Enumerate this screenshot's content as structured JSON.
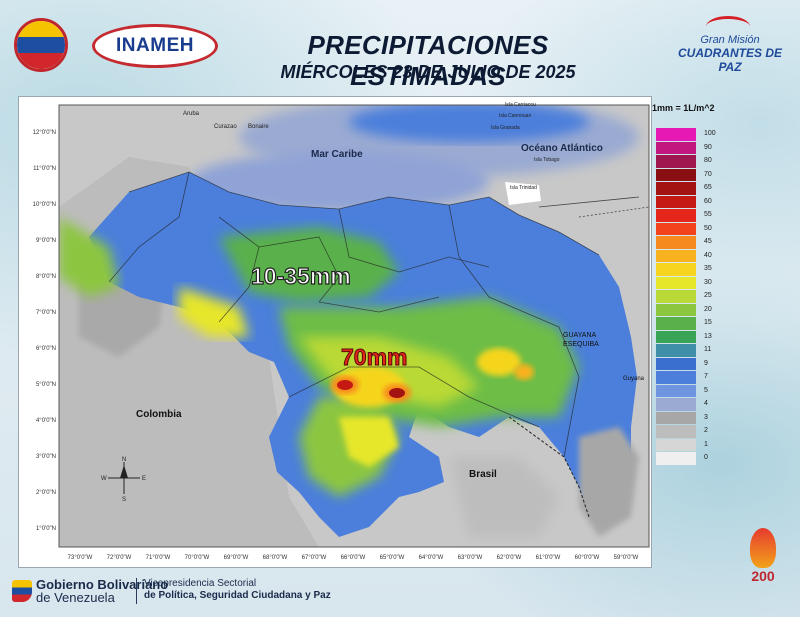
{
  "header": {
    "title": "PRECIPITACIONES ESTIMADAS",
    "subtitle": "MIÉRCOLES 23 DE JULIO DE 2025",
    "logo_inameh": "INAMEH",
    "mision_line1": "Gran Misión",
    "mision_line2": "CUADRANTES DE PAZ"
  },
  "map": {
    "labels": {
      "mar_caribe": "Mar Caribe",
      "oceano_atlantico": "Océano Atlántico",
      "colombia": "Colombia",
      "brasil": "Brasil",
      "guayana_line1": "GUAYANA",
      "guayana_line2": "ESEQUIBA",
      "guyana": "Guyana",
      "aruba": "Aruba",
      "curazao": "Curazao",
      "bonaire": "Bonaire",
      "trinidad": "Isla Trinidad",
      "tobago": "Isla Tobago",
      "granada": "Isla Granada",
      "carriacou": "Isla Carriacou",
      "cannouan": "Isla Cannouan",
      "compass_n": "N",
      "compass_s": "S",
      "compass_e": "E",
      "compass_w": "W"
    },
    "annotations": {
      "range": "10-35mm",
      "max": "70mm"
    },
    "lat_ticks": [
      "12°0'0\"N",
      "11°0'0\"N",
      "10°0'0\"N",
      "9°0'0\"N",
      "8°0'0\"N",
      "7°0'0\"N",
      "6°0'0\"N",
      "5°0'0\"N",
      "4°0'0\"N",
      "3°0'0\"N",
      "2°0'0\"N",
      "1°0'0\"N"
    ],
    "lon_ticks": [
      "73°0'0\"W",
      "72°0'0\"W",
      "71°0'0\"W",
      "70°0'0\"W",
      "69°0'0\"W",
      "68°0'0\"W",
      "67°0'0\"W",
      "66°0'0\"W",
      "65°0'0\"W",
      "64°0'0\"W",
      "63°0'0\"W",
      "62°0'0\"W",
      "61°0'0\"W",
      "60°0'0\"W",
      "59°0'0\"W"
    ]
  },
  "legend": {
    "unit": "1mm = 1L/m^2",
    "items": [
      {
        "label": "100",
        "color": "#e619b4"
      },
      {
        "label": "90",
        "color": "#c2177f"
      },
      {
        "label": "80",
        "color": "#a0164e"
      },
      {
        "label": "70",
        "color": "#8a0f12"
      },
      {
        "label": "65",
        "color": "#a31312"
      },
      {
        "label": "60",
        "color": "#c51a14"
      },
      {
        "label": "55",
        "color": "#e4271a"
      },
      {
        "label": "50",
        "color": "#f2431c"
      },
      {
        "label": "45",
        "color": "#f78a1e"
      },
      {
        "label": "40",
        "color": "#f9b21f"
      },
      {
        "label": "35",
        "color": "#f5d51f"
      },
      {
        "label": "30",
        "color": "#e6e62a"
      },
      {
        "label": "25",
        "color": "#b9d936"
      },
      {
        "label": "20",
        "color": "#8cc63f"
      },
      {
        "label": "15",
        "color": "#5ab14b"
      },
      {
        "label": "13",
        "color": "#39a356"
      },
      {
        "label": "11",
        "color": "#3f8fa8"
      },
      {
        "label": "9",
        "color": "#3a6fd0"
      },
      {
        "label": "7",
        "color": "#4b7fdb"
      },
      {
        "label": "5",
        "color": "#6f95e0"
      },
      {
        "label": "4",
        "color": "#9aaad2"
      },
      {
        "label": "3",
        "color": "#a7a7a7"
      },
      {
        "label": "2",
        "color": "#bdbdbd"
      },
      {
        "label": "1",
        "color": "#d6d6d6"
      },
      {
        "label": "0",
        "color": "#efefef"
      }
    ]
  },
  "footer": {
    "gob_line1": "Gobierno Bolivariano",
    "gob_line2": "de Venezuela",
    "vice_line1": "Vicepresidencia Sectorial",
    "vice_line2": "de Política, Seguridad Ciudadana y Paz",
    "emblem_text": "200"
  }
}
